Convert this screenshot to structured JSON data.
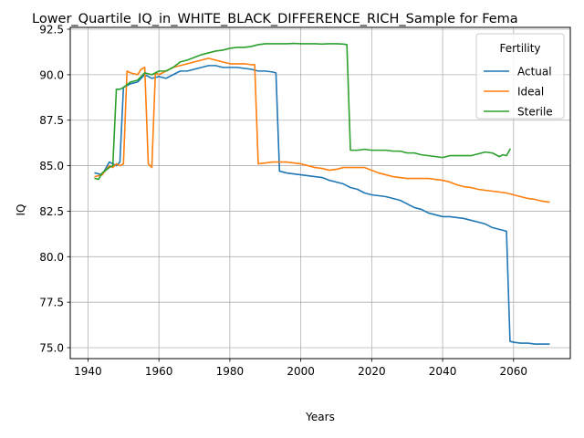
{
  "chart_data": {
    "type": "line",
    "title": "Lower_Quartile_IQ_in_WHITE_BLACK_DIFFERENCE_RICH_Sample for Fema",
    "xlabel": "Years",
    "ylabel": "IQ",
    "xlim": [
      1935,
      2076
    ],
    "ylim": [
      74.4,
      92.6
    ],
    "xticks": [
      "1940",
      "1960",
      "1980",
      "2000",
      "2020",
      "2040",
      "2060"
    ],
    "yticks": [
      "75.0",
      "77.5",
      "80.0",
      "82.5",
      "85.0",
      "87.5",
      "90.0",
      "92.5"
    ],
    "grid": true,
    "legend": {
      "title": "Fertility",
      "position": "top-right"
    },
    "series": [
      {
        "name": "Actual",
        "color": "#1f77b4",
        "points": [
          [
            1942,
            84.6
          ],
          [
            1944,
            84.5
          ],
          [
            1946,
            85.2
          ],
          [
            1948,
            85.0
          ],
          [
            1949,
            85.2
          ],
          [
            1950,
            89.3
          ],
          [
            1952,
            89.5
          ],
          [
            1954,
            89.6
          ],
          [
            1956,
            90.0
          ],
          [
            1958,
            89.8
          ],
          [
            1960,
            89.9
          ],
          [
            1962,
            89.8
          ],
          [
            1964,
            90.0
          ],
          [
            1966,
            90.2
          ],
          [
            1968,
            90.2
          ],
          [
            1970,
            90.3
          ],
          [
            1972,
            90.4
          ],
          [
            1974,
            90.5
          ],
          [
            1976,
            90.5
          ],
          [
            1978,
            90.4
          ],
          [
            1980,
            90.4
          ],
          [
            1982,
            90.4
          ],
          [
            1984,
            90.35
          ],
          [
            1986,
            90.3
          ],
          [
            1988,
            90.2
          ],
          [
            1990,
            90.2
          ],
          [
            1992,
            90.15
          ],
          [
            1993,
            90.1
          ],
          [
            1994,
            84.7
          ],
          [
            1996,
            84.6
          ],
          [
            1998,
            84.55
          ],
          [
            2000,
            84.5
          ],
          [
            2002,
            84.45
          ],
          [
            2004,
            84.4
          ],
          [
            2006,
            84.35
          ],
          [
            2008,
            84.2
          ],
          [
            2010,
            84.1
          ],
          [
            2012,
            84.0
          ],
          [
            2014,
            83.8
          ],
          [
            2016,
            83.7
          ],
          [
            2018,
            83.5
          ],
          [
            2020,
            83.4
          ],
          [
            2022,
            83.35
          ],
          [
            2024,
            83.3
          ],
          [
            2026,
            83.2
          ],
          [
            2028,
            83.1
          ],
          [
            2030,
            82.9
          ],
          [
            2032,
            82.7
          ],
          [
            2034,
            82.6
          ],
          [
            2036,
            82.4
          ],
          [
            2038,
            82.3
          ],
          [
            2040,
            82.2
          ],
          [
            2042,
            82.2
          ],
          [
            2044,
            82.15
          ],
          [
            2046,
            82.1
          ],
          [
            2048,
            82.0
          ],
          [
            2050,
            81.9
          ],
          [
            2052,
            81.8
          ],
          [
            2054,
            81.6
          ],
          [
            2056,
            81.5
          ],
          [
            2058,
            81.4
          ],
          [
            2059,
            75.35
          ],
          [
            2060,
            75.3
          ],
          [
            2062,
            75.25
          ],
          [
            2064,
            75.25
          ],
          [
            2066,
            75.2
          ],
          [
            2068,
            75.2
          ],
          [
            2070,
            75.2
          ]
        ]
      },
      {
        "name": "Ideal",
        "color": "#ff7f0e",
        "points": [
          [
            1942,
            84.4
          ],
          [
            1944,
            84.5
          ],
          [
            1946,
            85.0
          ],
          [
            1947,
            84.9
          ],
          [
            1948,
            85.1
          ],
          [
            1949,
            85.0
          ],
          [
            1950,
            85.1
          ],
          [
            1951,
            90.2
          ],
          [
            1952,
            90.1
          ],
          [
            1954,
            90.0
          ],
          [
            1955,
            90.3
          ],
          [
            1956,
            90.4
          ],
          [
            1957,
            85.1
          ],
          [
            1958,
            84.9
          ],
          [
            1959,
            90.1
          ],
          [
            1960,
            90.0
          ],
          [
            1962,
            90.2
          ],
          [
            1964,
            90.4
          ],
          [
            1966,
            90.5
          ],
          [
            1968,
            90.6
          ],
          [
            1970,
            90.7
          ],
          [
            1972,
            90.8
          ],
          [
            1974,
            90.9
          ],
          [
            1976,
            90.8
          ],
          [
            1978,
            90.7
          ],
          [
            1980,
            90.6
          ],
          [
            1982,
            90.6
          ],
          [
            1984,
            90.6
          ],
          [
            1986,
            90.55
          ],
          [
            1987,
            90.55
          ],
          [
            1988,
            85.1
          ],
          [
            1990,
            85.15
          ],
          [
            1992,
            85.2
          ],
          [
            1994,
            85.2
          ],
          [
            1996,
            85.2
          ],
          [
            1998,
            85.15
          ],
          [
            2000,
            85.1
          ],
          [
            2002,
            85.0
          ],
          [
            2004,
            84.9
          ],
          [
            2006,
            84.85
          ],
          [
            2008,
            84.75
          ],
          [
            2010,
            84.8
          ],
          [
            2012,
            84.9
          ],
          [
            2014,
            84.9
          ],
          [
            2016,
            84.9
          ],
          [
            2018,
            84.9
          ],
          [
            2020,
            84.75
          ],
          [
            2022,
            84.6
          ],
          [
            2024,
            84.5
          ],
          [
            2026,
            84.4
          ],
          [
            2028,
            84.35
          ],
          [
            2030,
            84.3
          ],
          [
            2032,
            84.3
          ],
          [
            2034,
            84.3
          ],
          [
            2036,
            84.3
          ],
          [
            2038,
            84.25
          ],
          [
            2040,
            84.2
          ],
          [
            2042,
            84.1
          ],
          [
            2044,
            83.95
          ],
          [
            2046,
            83.85
          ],
          [
            2048,
            83.8
          ],
          [
            2050,
            83.7
          ],
          [
            2052,
            83.65
          ],
          [
            2054,
            83.6
          ],
          [
            2056,
            83.55
          ],
          [
            2058,
            83.5
          ],
          [
            2060,
            83.4
          ],
          [
            2062,
            83.3
          ],
          [
            2064,
            83.2
          ],
          [
            2066,
            83.15
          ],
          [
            2068,
            83.05
          ],
          [
            2070,
            83.0
          ]
        ]
      },
      {
        "name": "Sterile",
        "color": "#2ca02c",
        "points": [
          [
            1942,
            84.3
          ],
          [
            1943,
            84.25
          ],
          [
            1944,
            84.6
          ],
          [
            1946,
            84.9
          ],
          [
            1947,
            85.0
          ],
          [
            1948,
            89.2
          ],
          [
            1949,
            89.2
          ],
          [
            1950,
            89.3
          ],
          [
            1952,
            89.6
          ],
          [
            1954,
            89.7
          ],
          [
            1956,
            90.1
          ],
          [
            1958,
            90.0
          ],
          [
            1960,
            90.2
          ],
          [
            1962,
            90.2
          ],
          [
            1964,
            90.4
          ],
          [
            1966,
            90.7
          ],
          [
            1968,
            90.8
          ],
          [
            1970,
            90.95
          ],
          [
            1972,
            91.1
          ],
          [
            1974,
            91.2
          ],
          [
            1976,
            91.3
          ],
          [
            1978,
            91.35
          ],
          [
            1980,
            91.45
          ],
          [
            1982,
            91.5
          ],
          [
            1984,
            91.5
          ],
          [
            1986,
            91.55
          ],
          [
            1988,
            91.65
          ],
          [
            1990,
            91.7
          ],
          [
            1992,
            91.7
          ],
          [
            1994,
            91.7
          ],
          [
            1996,
            91.7
          ],
          [
            1998,
            91.72
          ],
          [
            2000,
            91.7
          ],
          [
            2002,
            91.7
          ],
          [
            2004,
            91.7
          ],
          [
            2006,
            91.68
          ],
          [
            2008,
            91.7
          ],
          [
            2010,
            91.7
          ],
          [
            2012,
            91.68
          ],
          [
            2013,
            91.65
          ],
          [
            2014,
            85.85
          ],
          [
            2016,
            85.85
          ],
          [
            2018,
            85.9
          ],
          [
            2020,
            85.85
          ],
          [
            2022,
            85.85
          ],
          [
            2024,
            85.85
          ],
          [
            2026,
            85.8
          ],
          [
            2028,
            85.8
          ],
          [
            2030,
            85.7
          ],
          [
            2032,
            85.7
          ],
          [
            2034,
            85.6
          ],
          [
            2036,
            85.55
          ],
          [
            2038,
            85.5
          ],
          [
            2040,
            85.45
          ],
          [
            2042,
            85.55
          ],
          [
            2044,
            85.55
          ],
          [
            2046,
            85.55
          ],
          [
            2048,
            85.55
          ],
          [
            2050,
            85.65
          ],
          [
            2052,
            85.75
          ],
          [
            2054,
            85.7
          ],
          [
            2056,
            85.5
          ],
          [
            2057,
            85.6
          ],
          [
            2058,
            85.55
          ],
          [
            2059,
            85.9
          ]
        ]
      }
    ]
  }
}
